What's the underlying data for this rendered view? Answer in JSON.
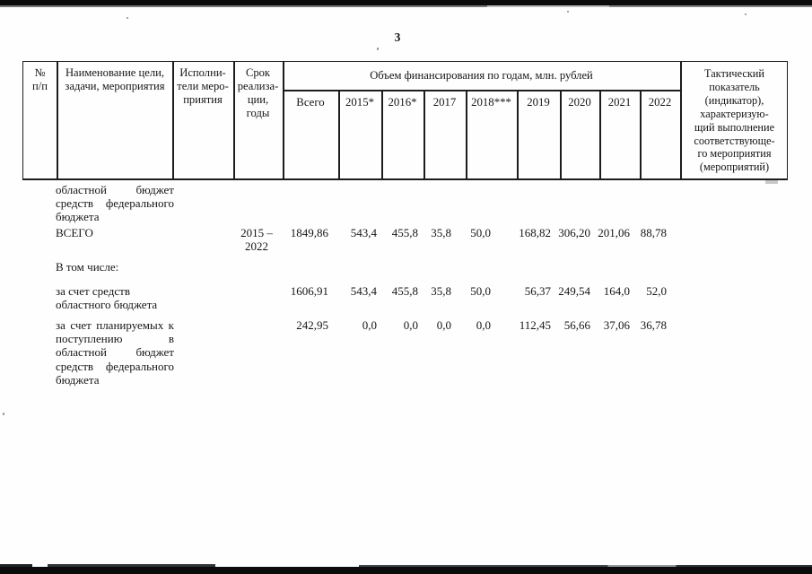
{
  "page_number": "3",
  "table": {
    "header": {
      "num": "№\nп/п",
      "name": "Наименование цели,\nзадачи, мероприятия",
      "executors": "Исполни-\nтели меро-\nприятия",
      "term": "Срок\nреализа-\nции,\nгоды",
      "financing": "Объем финансирования по годам, млн. рублей",
      "years": [
        "Всего",
        "2015*",
        "2016*",
        "2017",
        "2018***",
        "2019",
        "2020",
        "2021",
        "2022"
      ],
      "indicator": "Тактический\nпоказатель\n(индикатор),\nхарактеризую-\nщий выполнение\nсоответствующе-\nго мероприятия\n(мероприятий)"
    },
    "rows": [
      {
        "name": "областной бюджет средств федерального бюджета",
        "term": "",
        "v": [
          "",
          "",
          "",
          "",
          "",
          "",
          "",
          "",
          ""
        ]
      },
      {
        "name": "ВСЕГО",
        "term": "2015 –\n2022",
        "v": [
          "1849,86",
          "543,4",
          "455,8",
          "35,8",
          "50,0",
          "168,82",
          "306,20",
          "201,06",
          "88,78"
        ]
      },
      {
        "name": "В том числе:",
        "term": "",
        "v": [
          "",
          "",
          "",
          "",
          "",
          "",
          "",
          "",
          ""
        ]
      },
      {
        "name": "за счет средств областного бюджета",
        "term": "",
        "v": [
          "1606,91",
          "543,4",
          "455,8",
          "35,8",
          "50,0",
          "56,37",
          "249,54",
          "164,0",
          "52,0"
        ]
      },
      {
        "name": "за счет планируемых к поступлению в областной бюджет средств федерального бюджета",
        "term": "",
        "v": [
          "242,95",
          "0,0",
          "0,0",
          "0,0",
          "0,0",
          "112,45",
          "56,66",
          "37,06",
          "36,78"
        ]
      }
    ]
  }
}
